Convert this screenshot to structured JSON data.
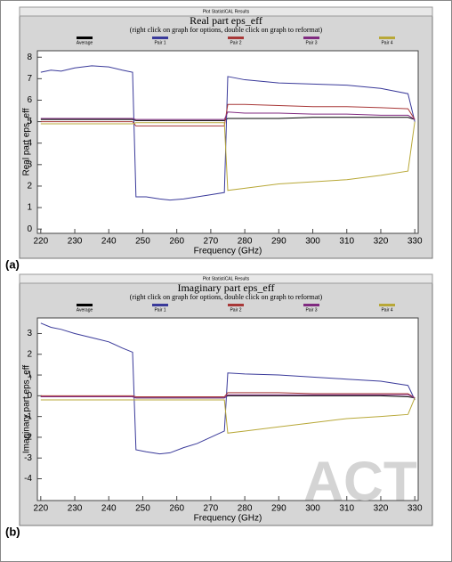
{
  "watermark": "ACT",
  "chart_data": [
    {
      "type": "line",
      "window_title": "Plot StatistiCAL Results",
      "panel_label": "(a)",
      "title": "Real part eps_eff",
      "subtitle": "(right click on graph for options, double click on graph to reformat)",
      "x_label": "Frequency (GHz)",
      "y_label": "Real part eps_eff",
      "x": [
        220,
        223,
        226,
        230,
        235,
        240,
        244,
        247,
        248,
        251,
        255,
        258,
        262,
        266,
        270,
        274,
        275,
        280,
        290,
        300,
        310,
        320,
        328,
        330
      ],
      "series": [
        {
          "name": "Average",
          "color": "#000000",
          "values": [
            5.1,
            5.1,
            5.1,
            5.1,
            5.1,
            5.1,
            5.1,
            5.1,
            5.05,
            5.05,
            5.05,
            5.05,
            5.05,
            5.05,
            5.05,
            5.05,
            5.15,
            5.15,
            5.15,
            5.2,
            5.2,
            5.2,
            5.2,
            5.1
          ]
        },
        {
          "name": "Pair 1",
          "color": "#3a3a9a",
          "values": [
            7.3,
            7.4,
            7.35,
            7.5,
            7.6,
            7.55,
            7.4,
            7.3,
            1.5,
            1.5,
            1.4,
            1.35,
            1.4,
            1.5,
            1.6,
            1.7,
            7.1,
            6.95,
            6.8,
            6.75,
            6.7,
            6.55,
            6.3,
            5.0
          ]
        },
        {
          "name": "Pair 2",
          "color": "#a83838",
          "values": [
            5.0,
            5.0,
            5.0,
            5.0,
            5.0,
            5.0,
            5.0,
            5.0,
            4.8,
            4.8,
            4.8,
            4.8,
            4.8,
            4.8,
            4.8,
            4.8,
            5.8,
            5.8,
            5.75,
            5.7,
            5.7,
            5.65,
            5.6,
            5.1
          ]
        },
        {
          "name": "Pair 3",
          "color": "#802a80",
          "values": [
            5.15,
            5.15,
            5.15,
            5.15,
            5.15,
            5.15,
            5.15,
            5.15,
            5.1,
            5.1,
            5.1,
            5.1,
            5.1,
            5.1,
            5.1,
            5.1,
            5.45,
            5.4,
            5.4,
            5.35,
            5.35,
            5.3,
            5.3,
            5.1
          ]
        },
        {
          "name": "Pair 4",
          "color": "#b8a838",
          "values": [
            4.9,
            4.9,
            4.9,
            4.9,
            4.9,
            4.9,
            4.9,
            4.9,
            4.95,
            4.95,
            4.95,
            4.95,
            4.95,
            4.95,
            4.95,
            4.95,
            1.8,
            1.9,
            2.1,
            2.2,
            2.3,
            2.5,
            2.7,
            5.0
          ]
        }
      ],
      "xlim": [
        219,
        331
      ],
      "xticks": [
        220,
        230,
        240,
        250,
        260,
        270,
        280,
        290,
        300,
        310,
        320,
        330
      ],
      "ylim": [
        -0.2,
        8.3
      ],
      "yticks": [
        0,
        1,
        2,
        3,
        4,
        5,
        6,
        7,
        8
      ]
    },
    {
      "type": "line",
      "window_title": "Plot StatistiCAL Results",
      "panel_label": "(b)",
      "title": "Imaginary part eps_eff",
      "subtitle": "(right click on graph for options, double click on graph to reformat)",
      "x_label": "Frequency (GHz)",
      "y_label": "Imaginary part eps_eff",
      "x": [
        220,
        223,
        226,
        230,
        235,
        240,
        244,
        247,
        248,
        251,
        255,
        258,
        262,
        266,
        270,
        274,
        275,
        280,
        290,
        300,
        310,
        320,
        328,
        330
      ],
      "series": [
        {
          "name": "Average",
          "color": "#000000",
          "values": [
            -0.05,
            -0.05,
            -0.05,
            -0.05,
            -0.05,
            -0.05,
            -0.05,
            -0.05,
            -0.1,
            -0.1,
            -0.1,
            -0.1,
            -0.1,
            -0.1,
            -0.1,
            -0.1,
            0.0,
            0.0,
            0.0,
            0.0,
            0.0,
            0.0,
            -0.05,
            -0.1
          ]
        },
        {
          "name": "Pair 1",
          "color": "#3a3a9a",
          "values": [
            3.5,
            3.3,
            3.2,
            3.0,
            2.8,
            2.6,
            2.3,
            2.1,
            -2.6,
            -2.7,
            -2.8,
            -2.75,
            -2.5,
            -2.3,
            -2.0,
            -1.7,
            1.1,
            1.05,
            1.0,
            0.9,
            0.8,
            0.7,
            0.5,
            -0.2
          ]
        },
        {
          "name": "Pair 2",
          "color": "#a83838",
          "values": [
            0.0,
            0.0,
            0.0,
            0.0,
            0.0,
            0.0,
            0.0,
            0.0,
            -0.05,
            -0.05,
            -0.05,
            -0.05,
            -0.05,
            -0.05,
            -0.05,
            -0.05,
            0.15,
            0.15,
            0.15,
            0.1,
            0.1,
            0.1,
            0.1,
            -0.1
          ]
        },
        {
          "name": "Pair 3",
          "color": "#802a80",
          "values": [
            -0.05,
            -0.05,
            -0.05,
            -0.05,
            -0.05,
            -0.05,
            -0.05,
            -0.05,
            -0.1,
            -0.1,
            -0.1,
            -0.1,
            -0.1,
            -0.1,
            -0.1,
            -0.1,
            0.05,
            0.05,
            0.05,
            0.05,
            0.05,
            0.05,
            0.05,
            -0.1
          ]
        },
        {
          "name": "Pair 4",
          "color": "#b8a838",
          "values": [
            -0.2,
            -0.2,
            -0.2,
            -0.2,
            -0.2,
            -0.2,
            -0.2,
            -0.2,
            -0.2,
            -0.2,
            -0.2,
            -0.2,
            -0.2,
            -0.2,
            -0.2,
            -0.2,
            -1.8,
            -1.7,
            -1.5,
            -1.3,
            -1.1,
            -1.0,
            -0.9,
            -0.1
          ]
        }
      ],
      "xlim": [
        219,
        331
      ],
      "xticks": [
        220,
        230,
        240,
        250,
        260,
        270,
        280,
        290,
        300,
        310,
        320,
        330
      ],
      "ylim": [
        -5.05,
        3.75
      ],
      "yticks": [
        -4,
        -3,
        -2,
        -1,
        0,
        1,
        2,
        3
      ]
    }
  ]
}
